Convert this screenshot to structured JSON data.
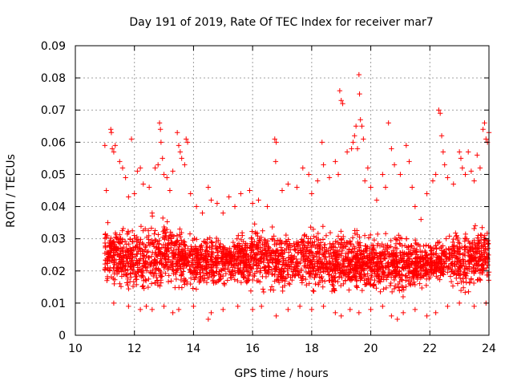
{
  "chart_data": {
    "type": "scatter",
    "title": "Day 191 of 2019, Rate Of TEC Index for receiver mar7",
    "xlabel": "GPS time / hours",
    "ylabel": "ROTI / TECUs",
    "xlim": [
      10,
      24
    ],
    "ylim": [
      0,
      0.09
    ],
    "xticks": [
      10,
      12,
      14,
      16,
      18,
      20,
      22,
      24
    ],
    "yticks": [
      0,
      0.01,
      0.02,
      0.03,
      0.04,
      0.05,
      0.06,
      0.07,
      0.08,
      0.09
    ],
    "xtick_labels": [
      "10",
      "12",
      "14",
      "16",
      "18",
      "20",
      "22",
      "24"
    ],
    "ytick_labels": [
      "0",
      "0.01",
      "0.02",
      "0.03",
      "0.04",
      "0.05",
      "0.06",
      "0.07",
      "0.08",
      "0.09"
    ],
    "grid": true,
    "marker": "+",
    "color": "#ff0000",
    "series": [
      {
        "name": "ROTI",
        "points": [
          [
            11.0,
            0.059
          ],
          [
            11.05,
            0.045
          ],
          [
            11.1,
            0.035
          ],
          [
            11.15,
            0.028
          ],
          [
            11.2,
            0.064
          ],
          [
            11.22,
            0.063
          ],
          [
            11.25,
            0.058
          ],
          [
            11.3,
            0.057
          ],
          [
            11.35,
            0.059
          ],
          [
            11.5,
            0.054
          ],
          [
            11.6,
            0.052
          ],
          [
            11.7,
            0.049
          ],
          [
            11.8,
            0.043
          ],
          [
            11.9,
            0.061
          ],
          [
            12.0,
            0.044
          ],
          [
            12.1,
            0.051
          ],
          [
            12.2,
            0.052
          ],
          [
            12.3,
            0.047
          ],
          [
            12.5,
            0.046
          ],
          [
            12.6,
            0.038
          ],
          [
            12.7,
            0.052
          ],
          [
            12.8,
            0.053
          ],
          [
            12.85,
            0.066
          ],
          [
            12.88,
            0.064
          ],
          [
            12.9,
            0.06
          ],
          [
            12.95,
            0.055
          ],
          [
            13.0,
            0.05
          ],
          [
            13.1,
            0.049
          ],
          [
            13.2,
            0.045
          ],
          [
            13.3,
            0.051
          ],
          [
            13.45,
            0.063
          ],
          [
            13.5,
            0.059
          ],
          [
            13.55,
            0.057
          ],
          [
            13.6,
            0.055
          ],
          [
            13.7,
            0.053
          ],
          [
            13.75,
            0.061
          ],
          [
            13.8,
            0.06
          ],
          [
            13.9,
            0.044
          ],
          [
            14.1,
            0.04
          ],
          [
            14.3,
            0.038
          ],
          [
            14.5,
            0.046
          ],
          [
            14.6,
            0.042
          ],
          [
            14.8,
            0.041
          ],
          [
            15.0,
            0.038
          ],
          [
            15.2,
            0.043
          ],
          [
            15.4,
            0.04
          ],
          [
            15.6,
            0.044
          ],
          [
            15.9,
            0.045
          ],
          [
            16.0,
            0.041
          ],
          [
            16.2,
            0.042
          ],
          [
            16.5,
            0.04
          ],
          [
            16.75,
            0.061
          ],
          [
            16.8,
            0.06
          ],
          [
            16.78,
            0.054
          ],
          [
            17.0,
            0.045
          ],
          [
            17.2,
            0.047
          ],
          [
            17.5,
            0.046
          ],
          [
            17.7,
            0.052
          ],
          [
            17.9,
            0.05
          ],
          [
            18.0,
            0.044
          ],
          [
            18.2,
            0.048
          ],
          [
            18.35,
            0.06
          ],
          [
            18.4,
            0.053
          ],
          [
            18.6,
            0.049
          ],
          [
            18.8,
            0.054
          ],
          [
            18.9,
            0.05
          ],
          [
            18.95,
            0.076
          ],
          [
            19.0,
            0.073
          ],
          [
            19.05,
            0.072
          ],
          [
            19.2,
            0.057
          ],
          [
            19.35,
            0.058
          ],
          [
            19.4,
            0.06
          ],
          [
            19.45,
            0.062
          ],
          [
            19.5,
            0.065
          ],
          [
            19.55,
            0.058
          ],
          [
            19.6,
            0.081
          ],
          [
            19.62,
            0.075
          ],
          [
            19.65,
            0.067
          ],
          [
            19.7,
            0.065
          ],
          [
            19.75,
            0.061
          ],
          [
            19.8,
            0.048
          ],
          [
            19.9,
            0.052
          ],
          [
            20.0,
            0.046
          ],
          [
            20.2,
            0.042
          ],
          [
            20.4,
            0.05
          ],
          [
            20.5,
            0.046
          ],
          [
            20.6,
            0.066
          ],
          [
            20.7,
            0.058
          ],
          [
            20.8,
            0.053
          ],
          [
            21.0,
            0.05
          ],
          [
            21.2,
            0.059
          ],
          [
            21.3,
            0.054
          ],
          [
            21.4,
            0.046
          ],
          [
            21.5,
            0.04
          ],
          [
            21.7,
            0.036
          ],
          [
            21.9,
            0.044
          ],
          [
            22.1,
            0.048
          ],
          [
            22.2,
            0.05
          ],
          [
            22.3,
            0.07
          ],
          [
            22.35,
            0.069
          ],
          [
            22.4,
            0.062
          ],
          [
            22.45,
            0.057
          ],
          [
            22.5,
            0.053
          ],
          [
            22.6,
            0.049
          ],
          [
            22.8,
            0.047
          ],
          [
            23.0,
            0.057
          ],
          [
            23.05,
            0.055
          ],
          [
            23.1,
            0.052
          ],
          [
            23.2,
            0.05
          ],
          [
            23.3,
            0.057
          ],
          [
            23.4,
            0.051
          ],
          [
            23.5,
            0.048
          ],
          [
            23.6,
            0.056
          ],
          [
            23.7,
            0.052
          ],
          [
            23.8,
            0.064
          ],
          [
            23.85,
            0.066
          ],
          [
            23.9,
            0.061
          ],
          [
            23.95,
            0.06
          ],
          [
            24.0,
            0.063
          ],
          [
            11.3,
            0.01
          ],
          [
            11.8,
            0.009
          ],
          [
            12.2,
            0.008
          ],
          [
            12.4,
            0.009
          ],
          [
            12.6,
            0.008
          ],
          [
            13.0,
            0.009
          ],
          [
            13.3,
            0.007
          ],
          [
            13.5,
            0.008
          ],
          [
            14.0,
            0.009
          ],
          [
            14.5,
            0.005
          ],
          [
            14.6,
            0.007
          ],
          [
            15.0,
            0.008
          ],
          [
            15.5,
            0.009
          ],
          [
            16.0,
            0.008
          ],
          [
            16.3,
            0.009
          ],
          [
            16.8,
            0.006
          ],
          [
            17.2,
            0.008
          ],
          [
            17.6,
            0.009
          ],
          [
            18.0,
            0.008
          ],
          [
            18.4,
            0.009
          ],
          [
            18.8,
            0.007
          ],
          [
            19.0,
            0.006
          ],
          [
            19.3,
            0.008
          ],
          [
            19.6,
            0.007
          ],
          [
            20.0,
            0.008
          ],
          [
            20.4,
            0.009
          ],
          [
            20.7,
            0.006
          ],
          [
            20.9,
            0.005
          ],
          [
            21.1,
            0.007
          ],
          [
            21.5,
            0.008
          ],
          [
            21.9,
            0.006
          ],
          [
            22.2,
            0.007
          ],
          [
            22.6,
            0.009
          ],
          [
            23.0,
            0.01
          ],
          [
            23.5,
            0.009
          ],
          [
            23.9,
            0.01
          ]
        ]
      }
    ],
    "dense_band": {
      "x_range": [
        11.0,
        24.0
      ],
      "center": 0.022,
      "spread": 0.006,
      "upper_envelope": [
        [
          11.0,
          0.036
        ],
        [
          12.0,
          0.036
        ],
        [
          13.0,
          0.04
        ],
        [
          14.0,
          0.034
        ],
        [
          15.0,
          0.032
        ],
        [
          16.0,
          0.036
        ],
        [
          17.0,
          0.034
        ],
        [
          18.0,
          0.036
        ],
        [
          19.0,
          0.034
        ],
        [
          20.0,
          0.034
        ],
        [
          21.0,
          0.034
        ],
        [
          22.0,
          0.03
        ],
        [
          23.0,
          0.036
        ],
        [
          24.0,
          0.036
        ]
      ],
      "lower_envelope": [
        [
          11.0,
          0.013
        ],
        [
          12.0,
          0.011
        ],
        [
          13.0,
          0.011
        ],
        [
          14.0,
          0.012
        ],
        [
          15.0,
          0.013
        ],
        [
          16.0,
          0.012
        ],
        [
          17.0,
          0.012
        ],
        [
          18.0,
          0.012
        ],
        [
          19.0,
          0.01
        ],
        [
          20.0,
          0.011
        ],
        [
          21.0,
          0.01
        ],
        [
          22.0,
          0.014
        ],
        [
          23.0,
          0.012
        ],
        [
          24.0,
          0.013
        ]
      ],
      "approx_count": 3000
    }
  }
}
